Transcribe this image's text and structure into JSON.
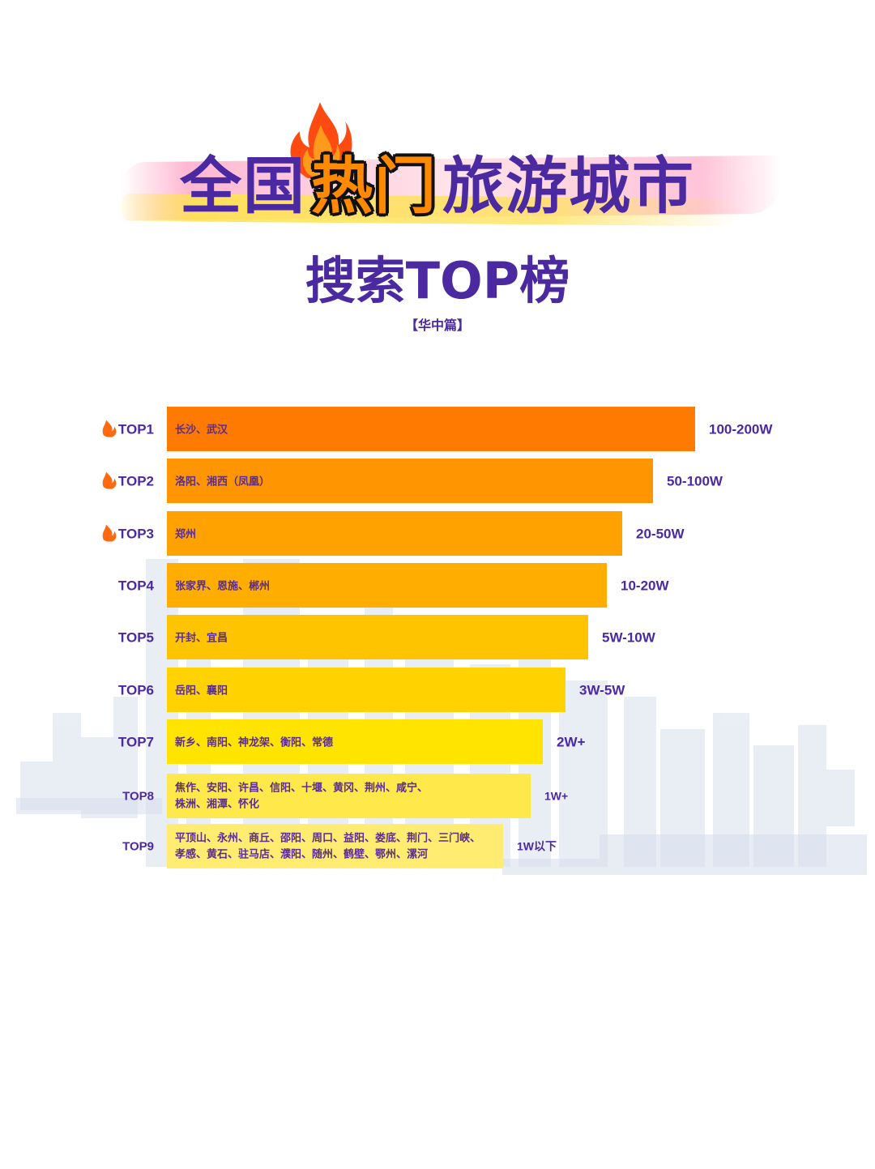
{
  "title": {
    "part_a": "全国",
    "part_b": "热门",
    "part_c": "旅游城市",
    "subtitle": "搜索TOP榜",
    "region": "【华中篇】"
  },
  "colors": {
    "title_purple": "#4b2aa1",
    "hot_orange": "#ff8a00",
    "bar_gradient": [
      "#ff7a00",
      "#ff9500",
      "#ffa200",
      "#ffae00",
      "#ffc400",
      "#ffd200",
      "#ffe400",
      "#ffe84a",
      "#ffec70"
    ]
  },
  "chart_data": {
    "type": "bar",
    "orientation": "horizontal",
    "value_scale": "rank-ordered bars, longest = top search volume",
    "rows": [
      {
        "rank": "TOP1",
        "hot": true,
        "cities": [
          "长沙、武汉"
        ],
        "value_label": "100-200W",
        "relative": 1.0
      },
      {
        "rank": "TOP2",
        "hot": true,
        "cities": [
          "洛阳、湘西（凤凰）"
        ],
        "value_label": "50-100W",
        "relative": 0.92
      },
      {
        "rank": "TOP3",
        "hot": true,
        "cities": [
          "郑州"
        ],
        "value_label": "20-50W",
        "relative": 0.862
      },
      {
        "rank": "TOP4",
        "hot": false,
        "cities": [
          "张家界、恩施、郴州"
        ],
        "value_label": "10-20W",
        "relative": 0.833
      },
      {
        "rank": "TOP5",
        "hot": false,
        "cities": [
          "开封、宜昌"
        ],
        "value_label": "5W-10W",
        "relative": 0.798
      },
      {
        "rank": "TOP6",
        "hot": false,
        "cities": [
          "岳阳、襄阳"
        ],
        "value_label": "3W-5W",
        "relative": 0.755
      },
      {
        "rank": "TOP7",
        "hot": false,
        "cities": [
          "新乡、南阳、神龙架、衡阳、常德"
        ],
        "value_label": "2W+",
        "relative": 0.712
      },
      {
        "rank": "TOP8",
        "hot": false,
        "cities": [
          "焦作、安阳、许昌、信阳、十堰、黄冈、荆州、咸宁、",
          "株洲、湘潭、怀化"
        ],
        "value_label": "1W+",
        "relative": 0.689
      },
      {
        "rank": "TOP9",
        "hot": false,
        "cities": [
          "平顶山、永州、商丘、邵阳、周口、益阳、娄底、荆门、三门峡、",
          "孝感、黄石、驻马店、濮阳、随州、鹤壁、鄂州、漯河"
        ],
        "value_label": "1W以下",
        "relative": 0.636
      }
    ]
  },
  "icons": {
    "hot_marker": "flame-icon"
  }
}
